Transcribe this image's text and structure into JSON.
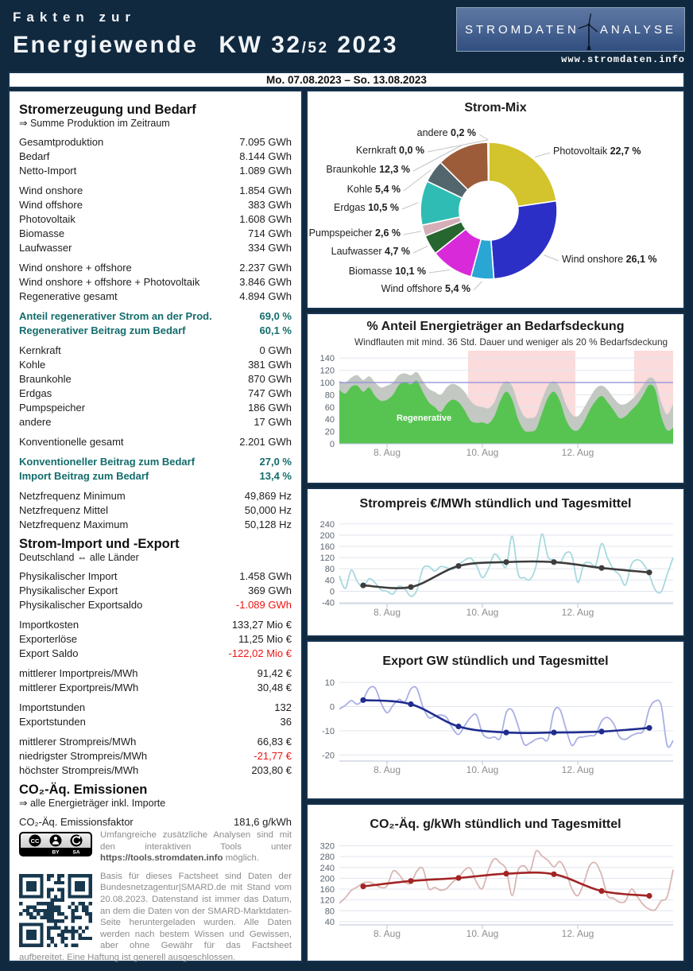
{
  "header": {
    "eyebrow": "Fakten zur",
    "word": "Energiewende",
    "kw": "KW 32",
    "kw_sub": "/52",
    "year": "2023",
    "brand_left": "STROMDATEN",
    "brand_right": "ANALYSE",
    "url": "www.stromdaten.info"
  },
  "datebar": {
    "range": "Mo. 07.08.2023 – So. 13.08.2023"
  },
  "colors": {
    "page_navy": "#10293f",
    "accent_teal": "#136c6c",
    "negative_red": "#ee1414",
    "band_pink": "#fbdbdb",
    "regenerative_green": "#57c452",
    "production_gray": "#c3c8c2"
  },
  "left_panel": {
    "blocks": [
      {
        "h": "Stromerzeugung und Bedarf",
        "sub": "⇒ Summe Produktion im Zeitraum"
      },
      {
        "rows": [
          [
            "Gesamtproduktion",
            "7.095 GWh"
          ],
          [
            "Bedarf",
            "8.144 GWh"
          ],
          [
            "Netto-Import",
            "1.089 GWh"
          ]
        ]
      },
      {
        "rows": [
          [
            "Wind onshore",
            "1.854 GWh"
          ],
          [
            "Wind offshore",
            "383 GWh"
          ],
          [
            "Photovoltaik",
            "1.608 GWh"
          ],
          [
            "Biomasse",
            "714 GWh"
          ],
          [
            "Laufwasser",
            "334 GWh"
          ]
        ]
      },
      {
        "rows": [
          [
            "Wind onshore + offshore",
            "2.237 GWh"
          ],
          [
            "Wind onshore + offshore + Photovoltaik",
            "3.846 GWh"
          ],
          [
            "Regenerative gesamt",
            "4.894 GWh"
          ]
        ]
      },
      {
        "accent": true,
        "rows": [
          [
            "Anteil regenerativer Strom an der Prod.",
            "69,0 %"
          ],
          [
            "Regenerativer Beitrag zum Bedarf",
            "60,1 %"
          ]
        ]
      },
      {
        "rows": [
          [
            "Kernkraft",
            "0 GWh"
          ],
          [
            "Kohle",
            "381 GWh"
          ],
          [
            "Braunkohle",
            "870 GWh"
          ],
          [
            "Erdgas",
            "747 GWh"
          ],
          [
            "Pumpspeicher",
            "186 GWh"
          ],
          [
            "andere",
            "17 GWh"
          ]
        ]
      },
      {
        "rows": [
          [
            "Konventionelle gesamt",
            "2.201 GWh"
          ]
        ]
      },
      {
        "accent": true,
        "rows": [
          [
            "Konventioneller Beitrag zum Bedarf",
            "27,0 %"
          ],
          [
            "Import Beitrag zum Bedarf",
            "13,4 %"
          ]
        ]
      },
      {
        "rows": [
          [
            "Netzfrequenz Minimum",
            "49,869 Hz"
          ],
          [
            "Netzfrequenz Mittel",
            "50,000 Hz"
          ],
          [
            "Netzfrequenz Maximum",
            "50,128 Hz"
          ]
        ]
      },
      {
        "h": "Strom-Import und -Export",
        "sub": "Deutschland ⇔ alle Länder"
      },
      {
        "rows": [
          [
            "Physikalischer Import",
            "1.458 GWh"
          ],
          [
            "Physikalischer Export",
            "369 GWh"
          ],
          [
            "Physikalischer Exportsaldo",
            "-1.089 GWh",
            "neg"
          ]
        ]
      },
      {
        "rows": [
          [
            "Importkosten",
            "133,27 Mio €"
          ],
          [
            "Exporterlöse",
            "11,25 Mio €"
          ],
          [
            "Export Saldo",
            "-122,02 Mio €",
            "neg"
          ]
        ]
      },
      {
        "rows": [
          [
            "mittlerer Importpreis/MWh",
            "91,42 €"
          ],
          [
            "mittlerer Exportpreis/MWh",
            "30,48 €"
          ]
        ]
      },
      {
        "rows": [
          [
            "Importstunden",
            "132"
          ],
          [
            "Exportstunden",
            "36"
          ]
        ]
      },
      {
        "rows": [
          [
            "mittlerer Strompreis/MWh",
            "66,83 €"
          ],
          [
            "niedrigster Strompreis/MWh",
            "-21,77 €",
            "neg"
          ],
          [
            "höchster Strompreis/MWh",
            "203,80 €"
          ]
        ]
      },
      {
        "h": "CO₂-Äq. Emissionen",
        "sub": "⇒ alle Energieträger inkl. Importe"
      },
      {
        "rows": [
          [
            "CO₂-Äq. Emissionsfaktor",
            "181,6 g/kWh"
          ]
        ]
      }
    ]
  },
  "footer": {
    "license_name": "CC BY SA",
    "para1_before": "Umfangreiche zusätzliche Analysen sind mit den interaktiven Tools unter ",
    "para1_link": "https://tools.stromdaten.info",
    "para1_after": " möglich.",
    "para2": "Basis für dieses Factsheet sind Daten der Bundesnetzagentur|SMARD.de mit Stand vom 20.08.2023. Datenstand ist immer das Datum, an dem die Daten von der SMARD-Marktdaten-Seite heruntergeladen wurden. Alle Daten werden nach bestem Wissen und Gewissen, aber ohne Gewähr für das Factsheet aufbereitet. Eine Haftung ist generell ausgeschlossen."
  },
  "chart_data": [
    {
      "type": "pie",
      "title": "Strom-Mix",
      "slices": [
        {
          "name": "Photovoltaik",
          "value": 22.7,
          "label": "22,7 %",
          "color": "#d3c32c"
        },
        {
          "name": "Wind onshore",
          "value": 26.1,
          "label": "26,1 %",
          "color": "#2c2fc6"
        },
        {
          "name": "Wind offshore",
          "value": 5.4,
          "label": "5,4 %",
          "color": "#2aa6d4"
        },
        {
          "name": "Biomasse",
          "value": 10.1,
          "label": "10,1 %",
          "color": "#d92ad9"
        },
        {
          "name": "Laufwasser",
          "value": 4.7,
          "label": "4,7 %",
          "color": "#27662f"
        },
        {
          "name": "Pumpspeicher",
          "value": 2.6,
          "label": "2,6 %",
          "color": "#d6aeb8"
        },
        {
          "name": "Erdgas",
          "value": 10.5,
          "label": "10,5 %",
          "color": "#2fbcb4"
        },
        {
          "name": "Kohle",
          "value": 5.4,
          "label": "5,4 %",
          "color": "#53666d"
        },
        {
          "name": "Braunkohle",
          "value": 12.3,
          "label": "12,3 %",
          "color": "#9c5c3a"
        },
        {
          "name": "Kernkraft",
          "value": 0.0,
          "label": "0,0 %",
          "color": "#999999"
        },
        {
          "name": "andere",
          "value": 0.2,
          "label": "0,2 %",
          "color": "#d9d9d9"
        }
      ]
    },
    {
      "type": "area",
      "title": "% Anteil Energieträger an Bedarfsdeckung",
      "legend": "Windflauten mit mind. 36 Std. Dauer und weniger als 20 % Bedarfsdeckung",
      "band_color": "#fbdbdb",
      "bands": [
        [
          2.7,
          4.95
        ],
        [
          6.18,
          7.0
        ]
      ],
      "refline": 100,
      "refline_color": "#8c8cd9",
      "ylim": [
        0,
        152
      ],
      "yticks": [
        0,
        20,
        40,
        60,
        80,
        100,
        120,
        140
      ],
      "xtick_pos": [
        1,
        3,
        5
      ],
      "xtick_labels": [
        "8. Aug",
        "10. Aug",
        "12. Aug"
      ],
      "step_hours": 3,
      "area_label": "Regenerative",
      "areas": [
        {
          "name": "Gesamtproduktion",
          "color": "#c3c8c2",
          "values": [
            103,
            100,
            108,
            112,
            104,
            110,
            100,
            92,
            95,
            100,
            112,
            115,
            112,
            117,
            103,
            90,
            85,
            80,
            92,
            98,
            94,
            85,
            70,
            62,
            60,
            58,
            68,
            92,
            102,
            94,
            65,
            45,
            42,
            46,
            72,
            95,
            102,
            92,
            65,
            48,
            45,
            58,
            75,
            90,
            95,
            88,
            75,
            65,
            65,
            72,
            82,
            96,
            108,
            102,
            68,
            48,
            65
          ]
        },
        {
          "name": "Regenerative",
          "color": "#57c452",
          "values": [
            88,
            82,
            93,
            95,
            85,
            92,
            78,
            70,
            72,
            80,
            96,
            101,
            97,
            103,
            85,
            68,
            60,
            52,
            65,
            72,
            68,
            55,
            38,
            34,
            35,
            33,
            45,
            70,
            85,
            72,
            40,
            22,
            20,
            24,
            50,
            75,
            85,
            70,
            40,
            24,
            22,
            35,
            55,
            70,
            78,
            68,
            55,
            42,
            45,
            55,
            65,
            80,
            96,
            88,
            45,
            22,
            26
          ]
        }
      ]
    },
    {
      "type": "line",
      "title": "Strompreis €/MWh stündlich und Tagesmittel",
      "ylim": [
        -44,
        262
      ],
      "yticks": [
        -40,
        0,
        40,
        80,
        120,
        160,
        200,
        240
      ],
      "xtick_pos": [
        1,
        3,
        5
      ],
      "xtick_labels": [
        "8. Aug",
        "10. Aug",
        "12. Aug"
      ],
      "step_hours": 3,
      "hourly_color": "#a7d9de",
      "daily_color": "#3d3d3d",
      "hourly": [
        55,
        10,
        75,
        35,
        15,
        45,
        30,
        5,
        0,
        -10,
        18,
        8,
        -18,
        3,
        80,
        88,
        72,
        88,
        84,
        78,
        95,
        110,
        118,
        92,
        48,
        80,
        132,
        112,
        88,
        196,
        62,
        48,
        42,
        90,
        204,
        122,
        112,
        100,
        136,
        128,
        32,
        95,
        102,
        92,
        170,
        118,
        78,
        58,
        22,
        95,
        112,
        98,
        58,
        5,
        -2,
        60,
        120
      ],
      "daily": [
        21,
        15,
        90,
        104,
        104,
        83,
        67
      ]
    },
    {
      "type": "line",
      "title": "Export GW stündlich und Tagesmittel",
      "ylim": [
        -22.5,
        13
      ],
      "yticks": [
        -20,
        -10,
        0,
        10
      ],
      "xtick_pos": [
        1,
        3,
        5
      ],
      "xtick_labels": [
        "8. Aug",
        "10. Aug",
        "12. Aug"
      ],
      "step_hours": 3,
      "hourly_color": "#a9afe5",
      "daily_color": "#1f2d8f",
      "hourly": [
        -1,
        0.5,
        2.5,
        1,
        3,
        7.5,
        7.7,
        1.5,
        -2.5,
        0.5,
        3,
        2,
        7.3,
        7.5,
        0,
        -4.5,
        -4,
        -3.5,
        -4.5,
        -9,
        -11.5,
        -8,
        -4.5,
        -3.5,
        -11,
        -13,
        -12.5,
        -13,
        -2.5,
        -1.5,
        -8,
        -15.5,
        -15,
        -13.5,
        -13,
        -13.5,
        -2,
        -1.2,
        -9,
        -16,
        -13,
        -12.5,
        -12,
        -11.5,
        -6,
        -4.5,
        -7,
        -12.5,
        -13.5,
        -12,
        -11,
        -10,
        -1,
        2.3,
        0.5,
        -16,
        -14
      ],
      "daily": [
        2.7,
        1.0,
        -8.2,
        -10.7,
        -10.7,
        -10.3,
        -8.8
      ]
    },
    {
      "type": "line",
      "title": "CO₂-Äq. g/kWh stündlich und Tagesmittel",
      "ylim": [
        28,
        342
      ],
      "yticks": [
        40,
        80,
        120,
        160,
        200,
        240,
        280,
        320
      ],
      "xtick_pos": [
        1,
        3,
        5
      ],
      "xtick_labels": [
        "8. Aug",
        "10. Aug",
        "12. Aug"
      ],
      "step_hours": 3,
      "hourly_color": "#d9b6b4",
      "daily_color": "#a32424",
      "hourly": [
        108,
        128,
        155,
        168,
        182,
        186,
        176,
        166,
        172,
        226,
        214,
        186,
        182,
        226,
        236,
        162,
        166,
        156,
        162,
        186,
        202,
        230,
        236,
        186,
        162,
        230,
        272,
        256,
        232,
        136,
        230,
        246,
        226,
        300,
        282,
        266,
        242,
        262,
        226,
        162,
        136,
        182,
        246,
        256,
        212,
        136,
        126,
        112,
        116,
        160,
        132,
        102,
        86,
        84,
        116,
        132,
        232
      ],
      "daily": [
        170,
        190,
        201,
        217,
        215,
        153,
        135
      ]
    }
  ]
}
